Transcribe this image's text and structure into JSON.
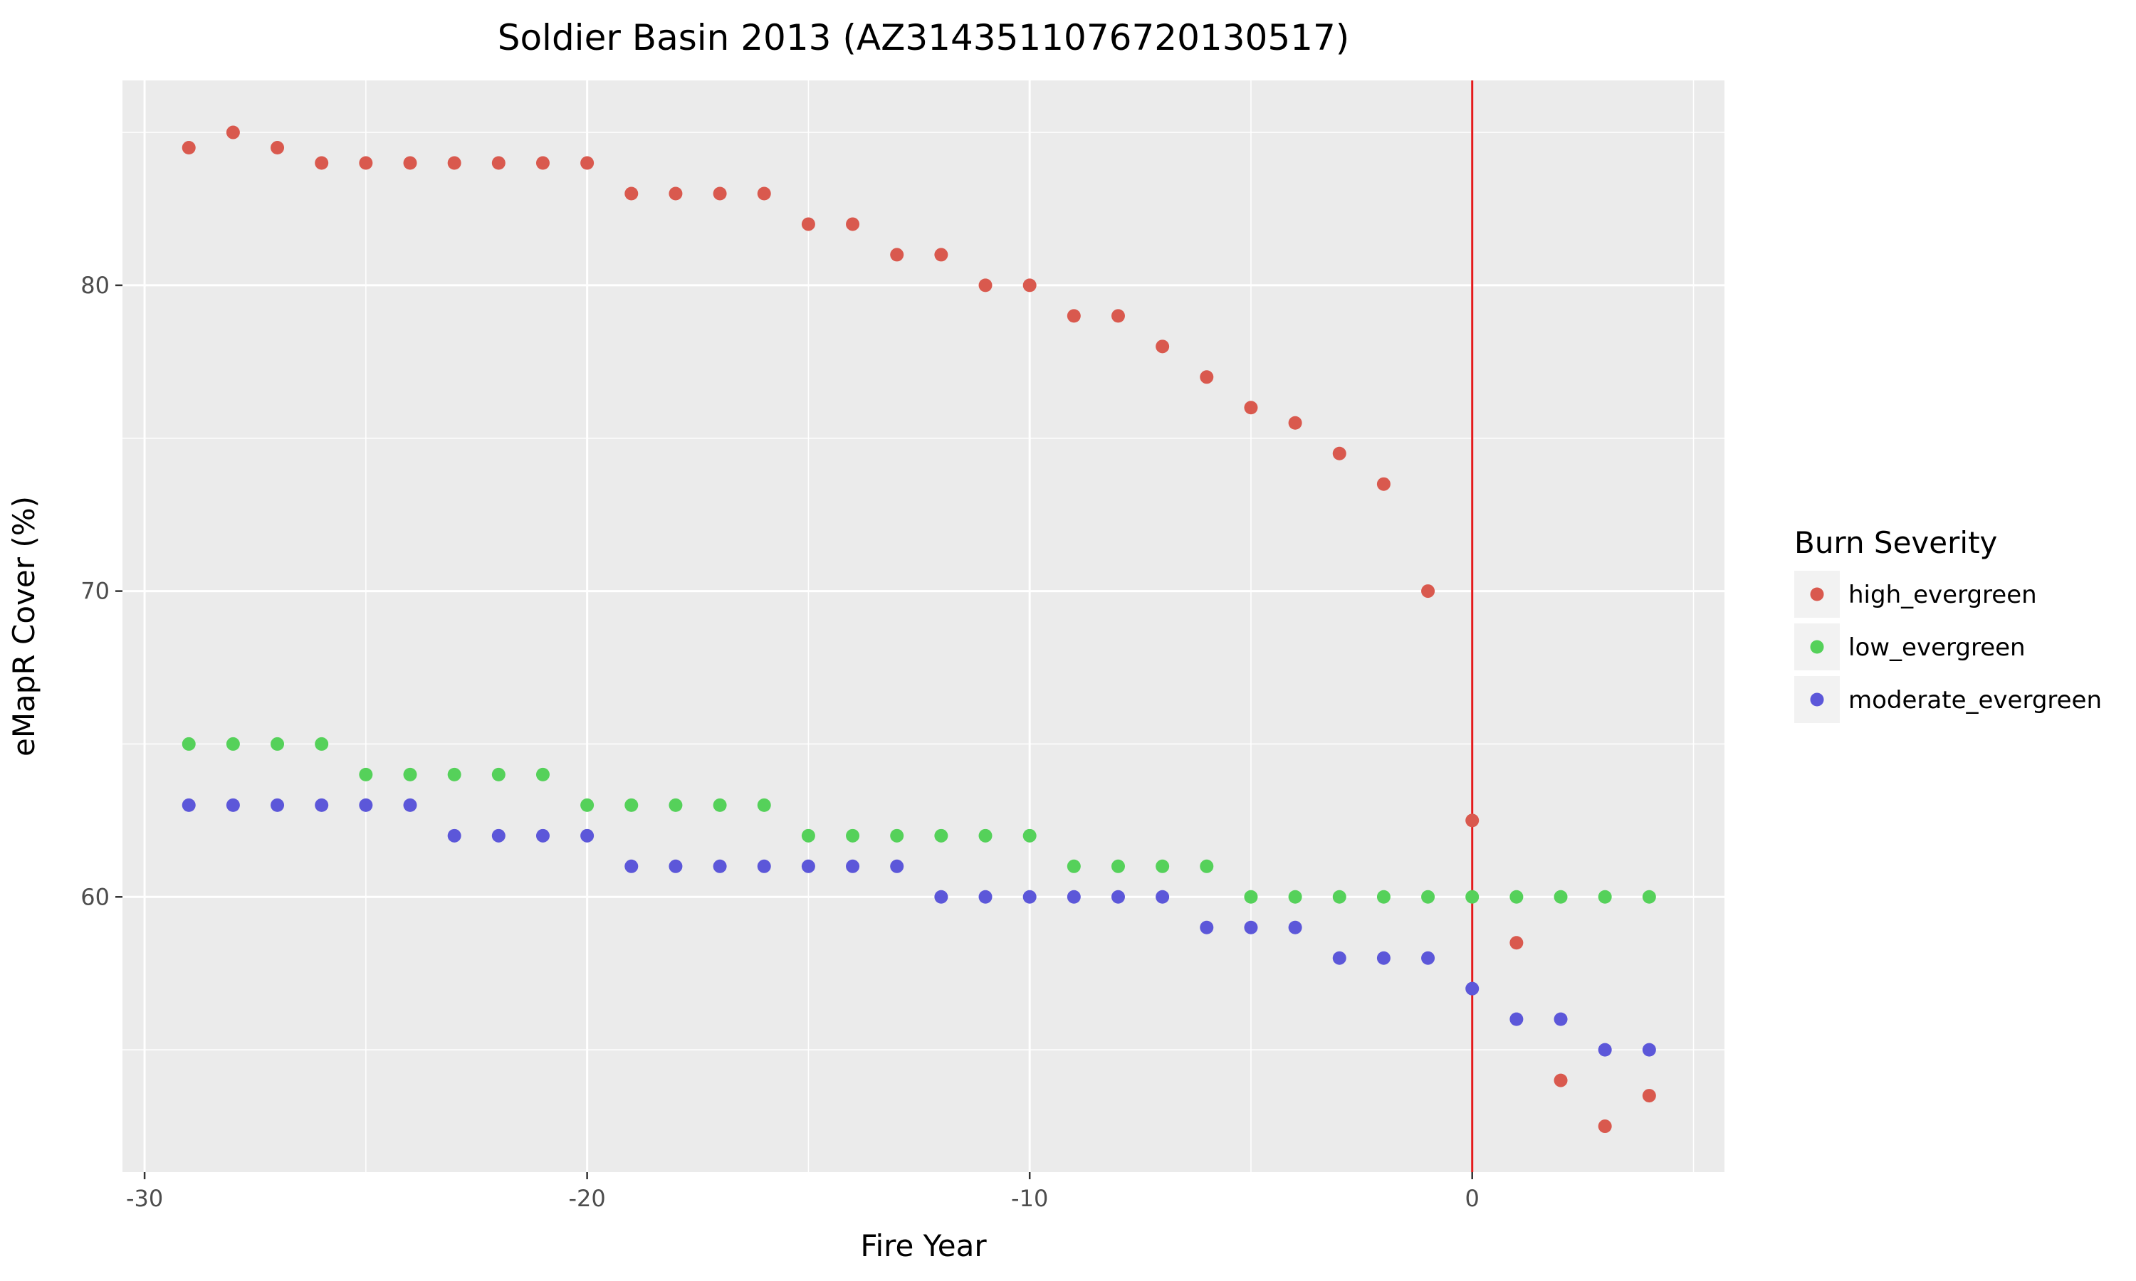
{
  "chart_data": {
    "type": "scatter",
    "title": "Soldier Basin 2013 (AZ3143511076720130517)",
    "xlabel": "Fire Year",
    "ylabel": "eMapR Cover (%)",
    "xlim": [
      -30.5,
      5.7
    ],
    "ylim": [
      51,
      86.7
    ],
    "x_ticks": [
      -30,
      -20,
      -10,
      0
    ],
    "x_tick_labels": [
      "-30",
      "-20",
      "-10",
      "0"
    ],
    "y_ticks": [
      60,
      70,
      80
    ],
    "y_tick_labels": [
      "60",
      "70",
      "80"
    ],
    "grid": true,
    "reference_line": {
      "x": 0,
      "color": "#e41a1c"
    },
    "legend": {
      "title": "Burn Severity",
      "placement": "right"
    },
    "series": [
      {
        "name": "high_evergreen",
        "color": "#d9594e",
        "x": [
          -29,
          -28,
          -27,
          -26,
          -25,
          -24,
          -23,
          -22,
          -21,
          -20,
          -19,
          -18,
          -17,
          -16,
          -15,
          -14,
          -13,
          -12,
          -11,
          -10,
          -9,
          -8,
          -7,
          -6,
          -5,
          -4,
          -3,
          -2,
          -1,
          0,
          1,
          2,
          3,
          4
        ],
        "y": [
          84.5,
          85,
          84.5,
          84,
          84,
          84,
          84,
          84,
          84,
          84,
          83,
          83,
          83,
          83,
          82,
          82,
          81,
          81,
          80,
          80,
          79,
          79,
          78,
          77,
          76,
          75.5,
          74.5,
          73.5,
          70,
          62.5,
          58.5,
          54,
          52.5,
          53.5
        ]
      },
      {
        "name": "low_evergreen",
        "color": "#55d15a",
        "x": [
          -29,
          -28,
          -27,
          -26,
          -25,
          -24,
          -23,
          -22,
          -21,
          -20,
          -19,
          -18,
          -17,
          -16,
          -15,
          -14,
          -13,
          -12,
          -11,
          -10,
          -9,
          -8,
          -7,
          -6,
          -5,
          -4,
          -3,
          -2,
          -1,
          0,
          1,
          2,
          3,
          4
        ],
        "y": [
          65,
          65,
          65,
          65,
          64,
          64,
          64,
          64,
          64,
          63,
          63,
          63,
          63,
          63,
          62,
          62,
          62,
          62,
          62,
          62,
          61,
          61,
          61,
          61,
          60,
          60,
          60,
          60,
          60,
          60,
          60,
          60,
          60,
          60
        ]
      },
      {
        "name": "moderate_evergreen",
        "color": "#5c57d9",
        "x": [
          -29,
          -28,
          -27,
          -26,
          -25,
          -24,
          -23,
          -22,
          -21,
          -20,
          -19,
          -18,
          -17,
          -16,
          -15,
          -14,
          -13,
          -12,
          -11,
          -10,
          -9,
          -8,
          -7,
          -6,
          -5,
          -4,
          -3,
          -2,
          -1,
          0,
          1,
          2,
          3,
          4
        ],
        "y": [
          63,
          63,
          63,
          63,
          63,
          63,
          62,
          62,
          62,
          62,
          61,
          61,
          61,
          61,
          61,
          61,
          61,
          60,
          60,
          60,
          60,
          60,
          60,
          59,
          59,
          59,
          58,
          58,
          58,
          57,
          56,
          56,
          55,
          55
        ]
      }
    ]
  }
}
